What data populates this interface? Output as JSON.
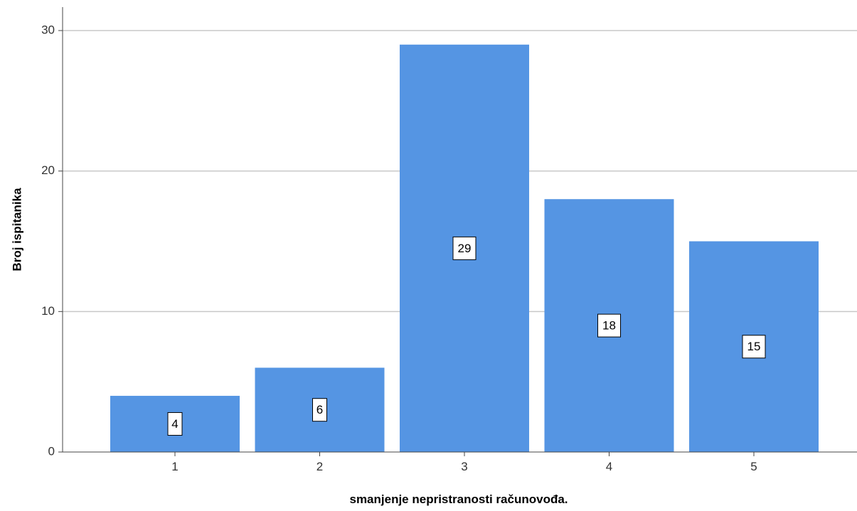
{
  "chart_data": {
    "type": "bar",
    "categories": [
      "1",
      "2",
      "3",
      "4",
      "5"
    ],
    "values": [
      4,
      6,
      29,
      18,
      15
    ],
    "xlabel": "smanjenje nepristranosti računovođa.",
    "ylabel": "Broj ispitanika",
    "ylim": [
      0,
      30
    ],
    "yticks": [
      "0",
      "10",
      "20",
      "30"
    ],
    "grid": true,
    "data_labels": [
      "4",
      "6",
      "29",
      "18",
      "15"
    ],
    "bar_color": "#5595e3",
    "grid_color": "#c8c8c8"
  }
}
